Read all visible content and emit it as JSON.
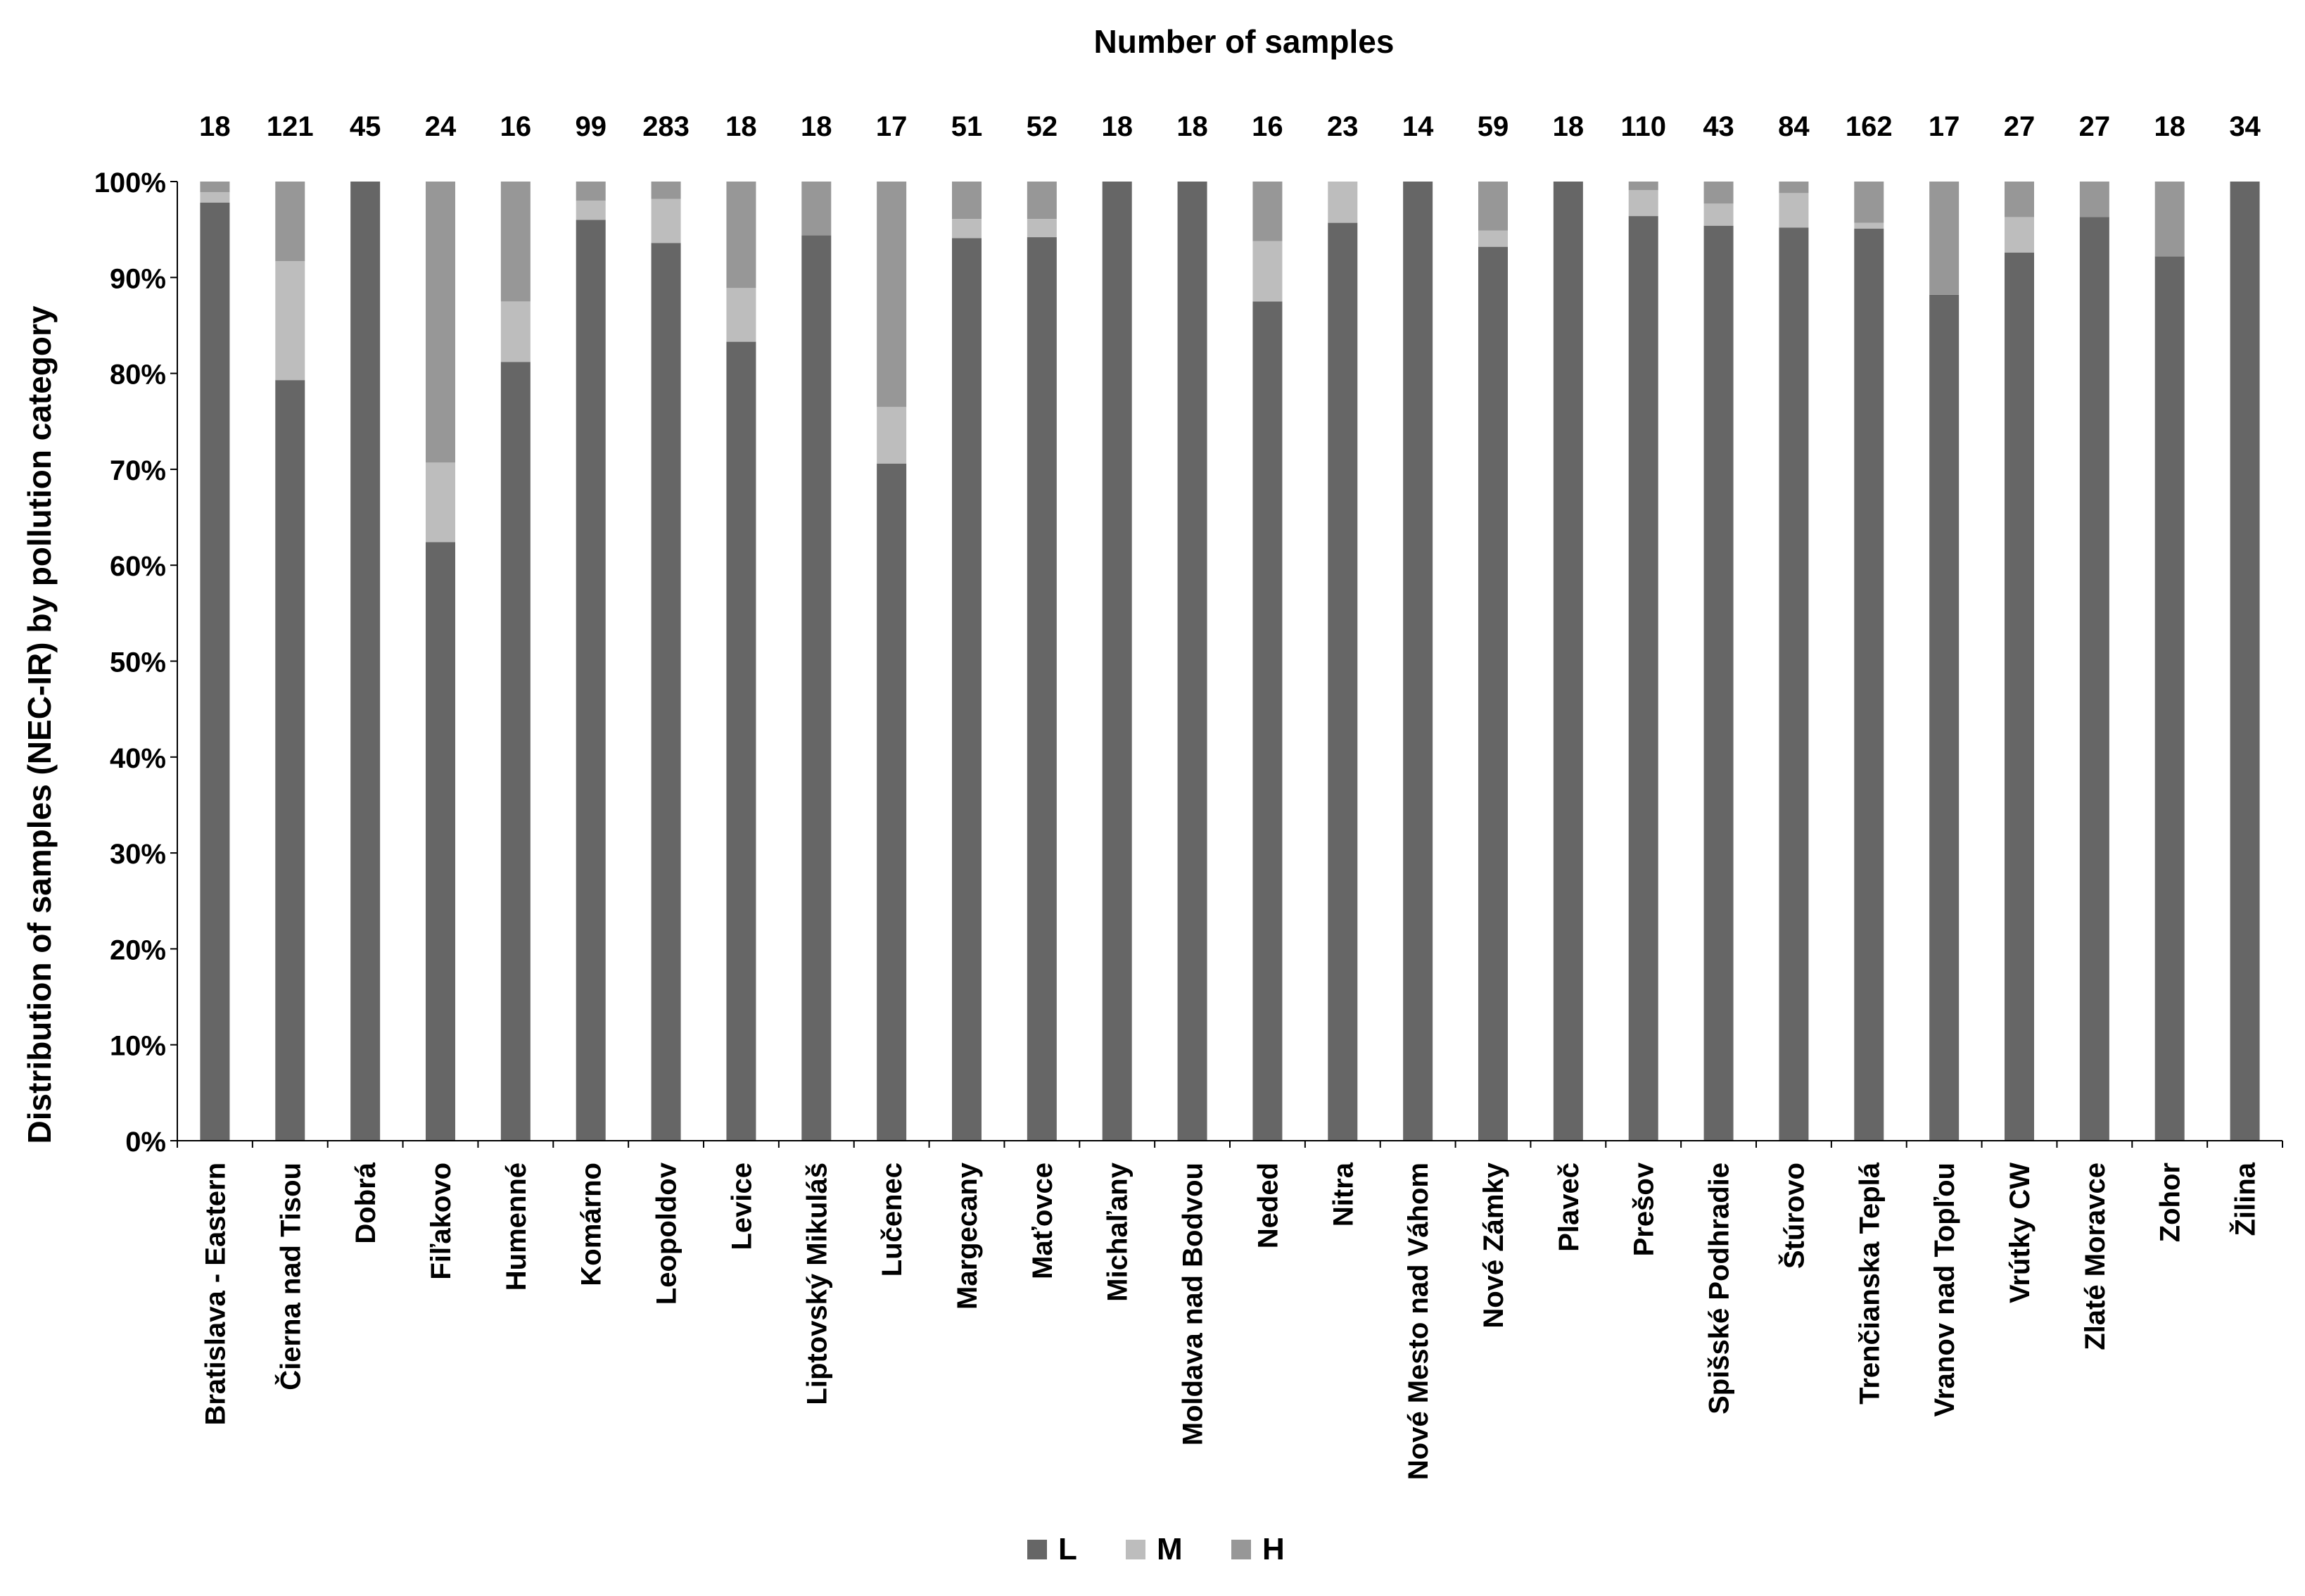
{
  "chart_data": {
    "type": "bar",
    "stacked": true,
    "percent": true,
    "top_title": "Number of samples",
    "ylabel": "Distribution of samples (NEC-IR)  by pollution category",
    "ylim": [
      0,
      100
    ],
    "yticks": [
      "0%",
      "10%",
      "20%",
      "30%",
      "40%",
      "50%",
      "60%",
      "70%",
      "80%",
      "90%",
      "100%"
    ],
    "grid": false,
    "legend_position": "bottom",
    "categories": [
      "Bratislava - Eastern",
      "Čierna nad Tisou",
      "Dobrá",
      "Fiľakovo",
      "Humenné",
      "Komárno",
      "Leopoldov",
      "Levice",
      "Liptovský Mikuláš",
      "Lučenec",
      "Margecany",
      "Maťovce",
      "Michaľany",
      "Moldava nad Bodvou",
      "Neded",
      "Nitra",
      "Nové Mesto nad Váhom",
      "Nové Zámky",
      "Plaveč",
      "Prešov",
      "Spišské Podhradie",
      "Štúrovo",
      "Trenčianska Teplá",
      "Vranov nad Topľou",
      "Vrútky CW",
      "Zlaté Moravce",
      "Zohor",
      "Žilina"
    ],
    "sample_counts": [
      "18",
      "121",
      "45",
      "24",
      "16",
      "99",
      "283",
      "18",
      "18",
      "17",
      "51",
      "52",
      "18",
      "18",
      "16",
      "23",
      "14",
      "59",
      "18",
      "110",
      "43",
      "84",
      "162",
      "17",
      "27",
      "27",
      "18",
      "34"
    ],
    "series": [
      {
        "name": "L",
        "color": "#666666",
        "values": [
          97.8,
          79.3,
          100,
          62.4,
          81.2,
          96.0,
          93.6,
          83.3,
          94.4,
          70.6,
          94.1,
          94.2,
          100,
          100,
          87.5,
          95.7,
          100,
          93.2,
          100,
          96.4,
          95.4,
          95.2,
          95.1,
          88.2,
          92.6,
          96.3,
          92.2,
          100
        ]
      },
      {
        "name": "M",
        "color": "#bdbdbd",
        "values": [
          1.1,
          12.4,
          0,
          8.3,
          6.3,
          2.0,
          4.6,
          5.6,
          0,
          5.9,
          2.0,
          1.9,
          0,
          0,
          6.3,
          4.3,
          0,
          1.7,
          0,
          2.7,
          2.3,
          3.6,
          0.6,
          0,
          3.7,
          0,
          0,
          0
        ]
      },
      {
        "name": "H",
        "color": "#979797",
        "values": [
          1.1,
          8.3,
          0,
          29.3,
          12.5,
          2.0,
          1.8,
          11.1,
          5.6,
          23.5,
          3.9,
          3.9,
          0,
          0,
          6.2,
          0,
          0,
          5.1,
          0,
          0.9,
          2.3,
          1.2,
          4.3,
          11.8,
          3.7,
          3.7,
          7.8,
          0
        ]
      }
    ]
  }
}
